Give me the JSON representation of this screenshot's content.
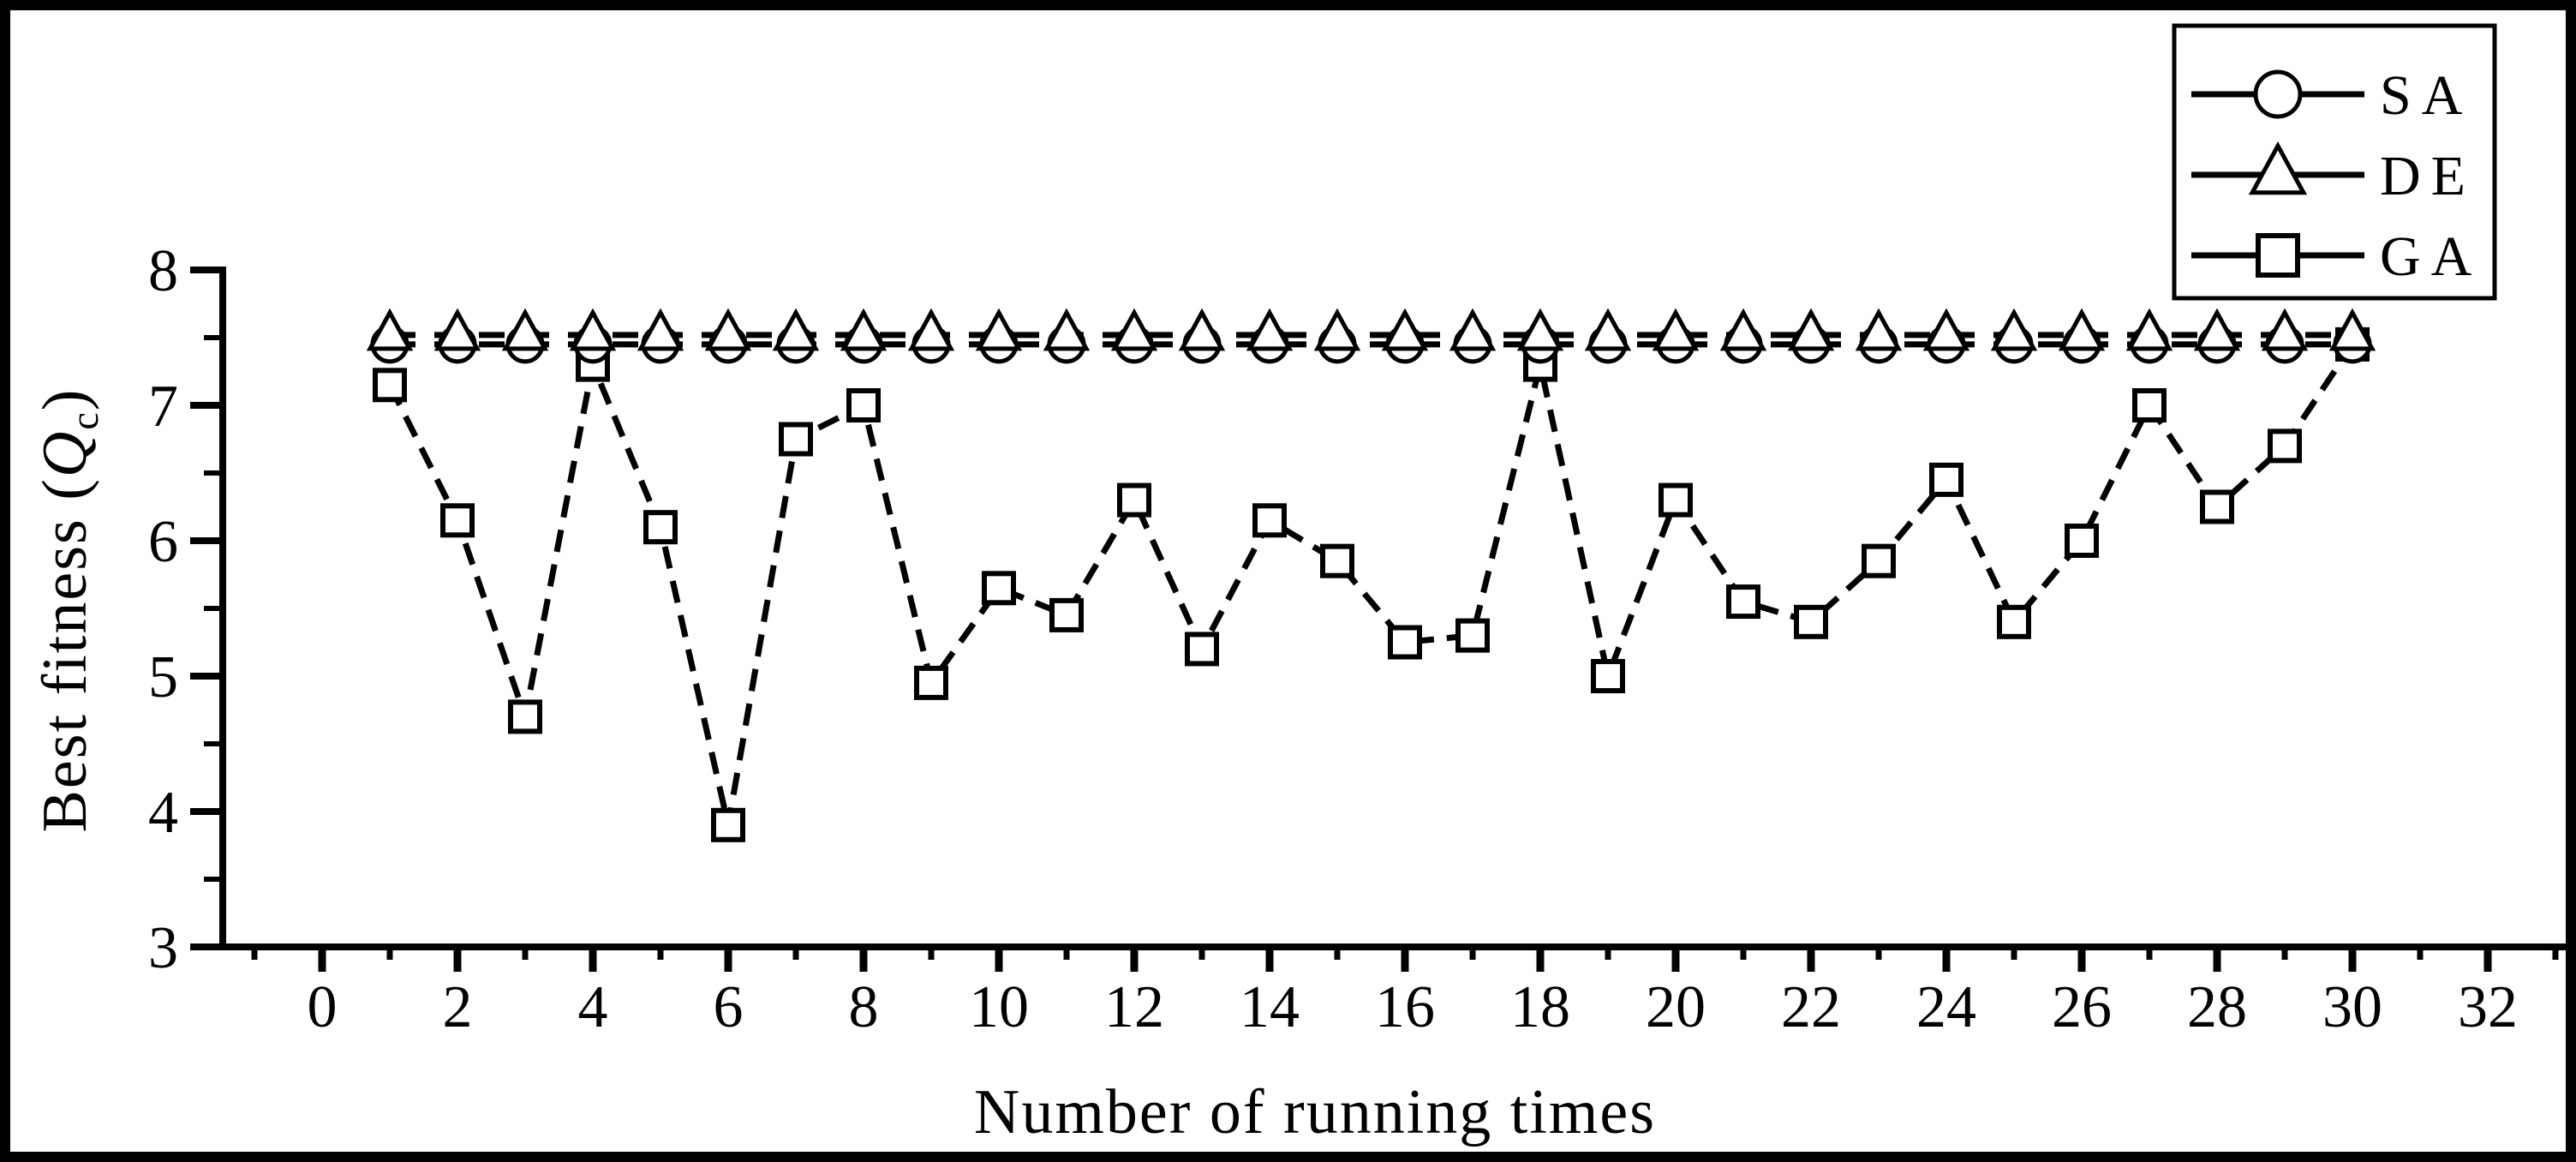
{
  "figure": {
    "background_color": "#ffffff",
    "border_color": "#000000",
    "line_color": "#000000"
  },
  "chart_data": {
    "type": "line",
    "title": "",
    "xlabel": "Number of running times",
    "ylabel": "Best fitness (Q_c)",
    "ylabel_parts": {
      "prefix": "Best fitness (",
      "variable": "Q",
      "subscript": "c",
      "suffix": ")"
    },
    "xlim": [
      -1.5,
      33.2
    ],
    "ylim": [
      3,
      8
    ],
    "grid": false,
    "x_axis": {
      "major_ticks": [
        0,
        2,
        4,
        6,
        8,
        10,
        12,
        14,
        16,
        18,
        20,
        22,
        24,
        26,
        28,
        30,
        32
      ],
      "minor_ticks": [
        -1,
        1,
        3,
        5,
        7,
        9,
        11,
        13,
        15,
        17,
        19,
        21,
        23,
        25,
        27,
        29,
        31,
        33
      ]
    },
    "y_axis": {
      "major_ticks": [
        3,
        4,
        5,
        6,
        7,
        8
      ],
      "minor_ticks": [
        3.5,
        4.5,
        5.5,
        6.5,
        7.5
      ]
    },
    "x": [
      1,
      2,
      3,
      4,
      5,
      6,
      7,
      8,
      9,
      10,
      11,
      12,
      13,
      14,
      15,
      16,
      17,
      18,
      19,
      20,
      21,
      22,
      23,
      24,
      25,
      26,
      27,
      28,
      29,
      30
    ],
    "series": [
      {
        "name": "GA",
        "marker": "square",
        "line_style": "dashed",
        "values": [
          7.15,
          6.15,
          4.7,
          7.3,
          6.1,
          3.9,
          6.75,
          7.0,
          4.95,
          5.65,
          5.45,
          6.3,
          5.2,
          6.15,
          5.85,
          5.25,
          5.3,
          7.3,
          5.0,
          6.3,
          5.55,
          5.4,
          5.85,
          6.45,
          5.4,
          6.0,
          7.0,
          6.25,
          6.7,
          7.45
        ]
      },
      {
        "name": "SA",
        "marker": "circle",
        "line_style": "dashed",
        "values": [
          7.45,
          7.45,
          7.45,
          7.45,
          7.45,
          7.45,
          7.45,
          7.45,
          7.45,
          7.45,
          7.45,
          7.45,
          7.45,
          7.45,
          7.45,
          7.45,
          7.45,
          7.45,
          7.45,
          7.45,
          7.45,
          7.45,
          7.45,
          7.45,
          7.45,
          7.45,
          7.45,
          7.45,
          7.45,
          7.45
        ]
      },
      {
        "name": "DE",
        "marker": "triangle",
        "line_style": "dashed",
        "values": [
          7.52,
          7.52,
          7.52,
          7.52,
          7.52,
          7.52,
          7.52,
          7.52,
          7.52,
          7.52,
          7.52,
          7.52,
          7.52,
          7.52,
          7.52,
          7.52,
          7.52,
          7.52,
          7.52,
          7.52,
          7.52,
          7.52,
          7.52,
          7.52,
          7.52,
          7.52,
          7.52,
          7.52,
          7.52,
          7.52
        ]
      }
    ],
    "legend": {
      "position": "top-right",
      "entries": [
        {
          "label": "SA",
          "marker": "circle"
        },
        {
          "label": "DE",
          "marker": "triangle"
        },
        {
          "label": "GA",
          "marker": "square"
        }
      ]
    }
  }
}
